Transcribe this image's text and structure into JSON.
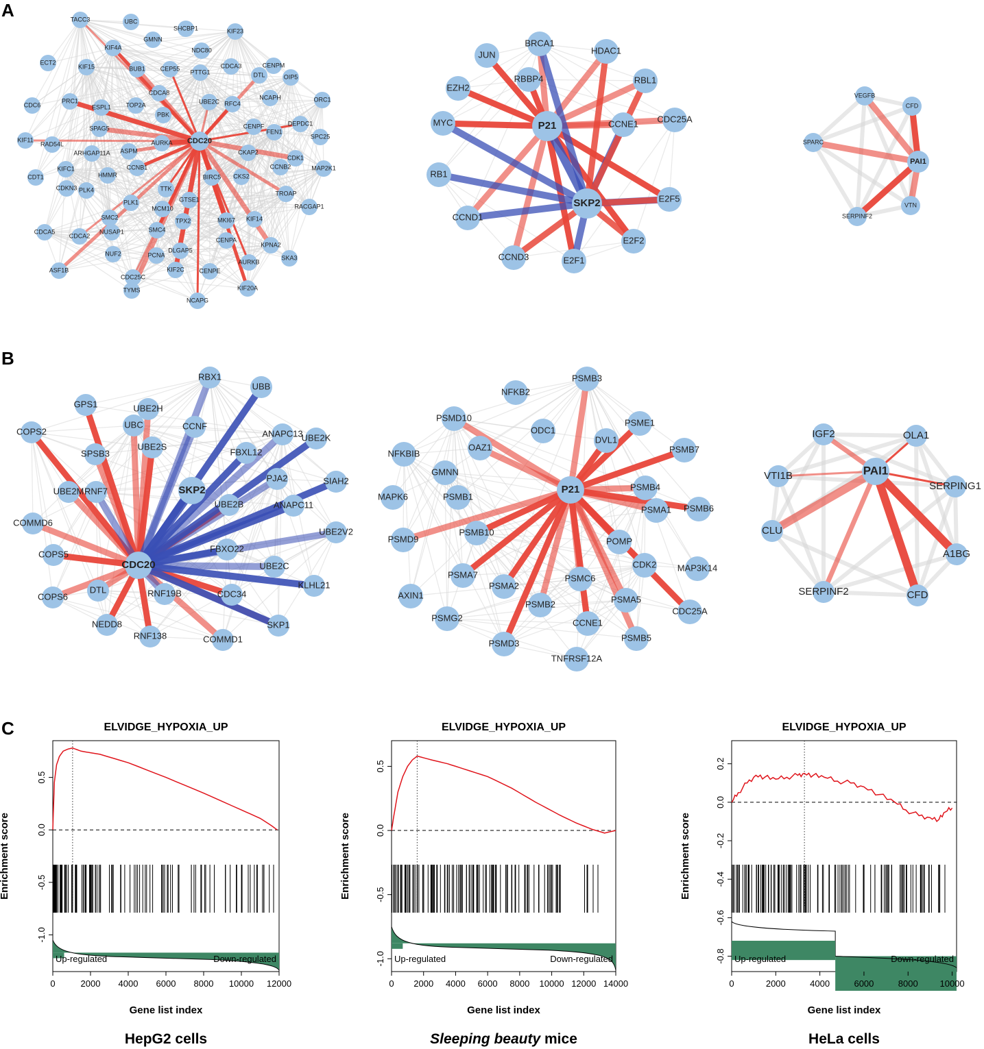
{
  "panel_labels": [
    "A",
    "B",
    "C"
  ],
  "colors": {
    "node": "#9dc3e6",
    "positive_edge": "#e8463a",
    "negative_edge": "#3a4fb5",
    "background_edge": "#d5d5d5",
    "es_curve": "#e0141b",
    "ranked_fill": "#3e8764"
  },
  "networks": {
    "A1": {
      "hub": "CDC20",
      "labels": [
        "TACC3",
        "UBC",
        "SHCBP1",
        "KIF23",
        "NDC80",
        "GMNN",
        "KIF4A",
        "CENPM",
        "ECT2",
        "KIF15",
        "BUB1",
        "CEP55",
        "PTTG1",
        "CDCA3",
        "DTL",
        "OIP5",
        "CDC6",
        "PRC1",
        "ESPL1",
        "TOP2A",
        "CDCA8",
        "UBE2C",
        "RFC4",
        "NCAPH",
        "ORC1",
        "SPAG5",
        "PBK",
        "CENPF",
        "DEPDC1",
        "RAD54L",
        "ARHGAP11A",
        "ASPM",
        "AURKA",
        "FEN1",
        "SPC25",
        "KIF11",
        "KIFC1",
        "CCNB1",
        "HMMR",
        "CKAP2",
        "CCNB2",
        "CDK1",
        "MAP2K1",
        "CDT1",
        "PLK4",
        "TTK",
        "BIRC5",
        "CKS2",
        "TROAP",
        "CDKN3",
        "PLK1",
        "MCM10",
        "GTSE1",
        "SMC2",
        "MKI67",
        "KIF14",
        "RACGAP1",
        "CDCA5",
        "CDCA2",
        "NUSAP1",
        "SMC4",
        "TPX2",
        "CENPA",
        "KPNA2",
        "SKA3",
        "NUF2",
        "DLGAP5",
        "AURKB",
        "ASF1B",
        "PCNA",
        "KIF2C",
        "CENPE",
        "CDC25C",
        "KIF20A",
        "TYMS",
        "NCAPG"
      ]
    },
    "A2": {
      "hubs": [
        "P21",
        "SKP2"
      ],
      "labels": [
        "BRCA1",
        "JUN",
        "HDAC1",
        "RBBP4",
        "RBL1",
        "EZH2",
        "CDC25A",
        "MYC",
        "CCNE1",
        "RB1",
        "E2F5",
        "CCND1",
        "E2F2",
        "CCND3",
        "E2F1"
      ]
    },
    "A3": {
      "hub": "PAI1",
      "labels": [
        "VEGFB",
        "CFD",
        "SPARC",
        "SERPINF2",
        "VTN"
      ]
    },
    "B1": {
      "hubs": [
        "CDC20",
        "SKP2"
      ],
      "labels": [
        "RBX1",
        "UBB",
        "UBE2H",
        "ANAPC13",
        "GPS1",
        "UBE2K",
        "UBC",
        "CCNF",
        "FBXL12",
        "COPS2",
        "SPSB3",
        "UBE2S",
        "PJA2",
        "SIAH2",
        "UBE2M",
        "RNF7",
        "UBE2B",
        "ANAPC11",
        "UBE2V2",
        "COMMD6",
        "COPS5",
        "FBXO22",
        "UBE2C",
        "KLHL21",
        "DTL",
        "RNF19B",
        "CDC34",
        "COPS6",
        "NEDD8",
        "SKP1",
        "RNF138",
        "COMMD1"
      ]
    },
    "B2": {
      "hub": "P21",
      "labels": [
        "PSMB3",
        "NFKB2",
        "PSME1",
        "PSMD10",
        "ODC1",
        "DVL1",
        "NFKBIB",
        "OAZ1",
        "PSMB7",
        "GMNN",
        "MAPK6",
        "PSMB1",
        "PSMB4",
        "PSMB6",
        "PSMD9",
        "PSMB10",
        "PSMA1",
        "POMP",
        "CDK2",
        "MAP3K14",
        "PSMA7",
        "PSMC6",
        "PSMA2",
        "AXIN1",
        "PSMA5",
        "CDC25A",
        "PSMB2",
        "PSMG2",
        "CCNE1",
        "PSMB5",
        "PSMD3",
        "TNFRSF12A"
      ]
    },
    "B3": {
      "hub": "PAI1",
      "labels": [
        "IGF2",
        "OLA1",
        "VTI1B",
        "SERPING1",
        "CLU",
        "A1BG",
        "SERPINF2",
        "CFD"
      ]
    }
  },
  "chart_data": [
    {
      "type": "line",
      "title": "ELVIDGE_HYPOXIA_UP",
      "xlabel": "Gene list index",
      "ylabel": "Enrichment score",
      "xlim": [
        0,
        12000
      ],
      "ylim": [
        -1.35,
        0.85
      ],
      "xticks": [
        0,
        2000,
        4000,
        6000,
        8000,
        10000,
        12000
      ],
      "yticks": [
        -1.0,
        -0.5,
        0.0,
        0.5
      ],
      "ytick_labels": [
        "-1.0",
        "-0.5",
        "0.0",
        "0.5"
      ],
      "series": [
        {
          "name": "Enrichment score",
          "x": [
            0,
            80,
            200,
            350,
            550,
            800,
            1050,
            1500,
            2500,
            4000,
            6000,
            8000,
            10000,
            11000,
            11600,
            11900
          ],
          "y": [
            0.0,
            0.45,
            0.62,
            0.7,
            0.75,
            0.77,
            0.78,
            0.75,
            0.72,
            0.64,
            0.5,
            0.35,
            0.19,
            0.11,
            0.04,
            0.0
          ]
        }
      ],
      "peak_index": 1050,
      "baseline": 0.0,
      "ranked_metric_baseline": -1.17,
      "left_annotation": "Up-regulated",
      "right_annotation": "Down-regulated",
      "sample_label": "HepG2 cells"
    },
    {
      "type": "line",
      "title": "ELVIDGE_HYPOXIA_UP",
      "xlabel": "Gene list index",
      "ylabel": "Enrichment score",
      "xlim": [
        0,
        14000
      ],
      "ylim": [
        -1.1,
        0.7
      ],
      "xticks": [
        0,
        2000,
        4000,
        6000,
        8000,
        10000,
        12000,
        14000
      ],
      "yticks": [
        -1.0,
        -0.5,
        0.0,
        0.5
      ],
      "ytick_labels": [
        "-1.0",
        "-0.5",
        "0.0",
        "0.5"
      ],
      "series": [
        {
          "name": "Enrichment score",
          "x": [
            0,
            150,
            400,
            700,
            1000,
            1300,
            1600,
            2500,
            3500,
            4500,
            6000,
            7500,
            9000,
            10500,
            11500,
            12500,
            13300,
            14000
          ],
          "y": [
            0.0,
            0.12,
            0.3,
            0.42,
            0.5,
            0.55,
            0.58,
            0.55,
            0.52,
            0.48,
            0.42,
            0.33,
            0.22,
            0.12,
            0.06,
            0.01,
            -0.02,
            0.0
          ]
        }
      ],
      "peak_index": 1600,
      "baseline": 0.0,
      "ranked_metric_baseline": -0.88,
      "left_annotation": "Up-regulated",
      "right_annotation": "Down-regulated",
      "sample_label_italic": "Sleeping beauty",
      "sample_label_rest": " mice"
    },
    {
      "type": "line",
      "title": "ELVIDGE_HYPOXIA_UP",
      "xlabel": "Gene list index",
      "ylabel": "Enrichment score",
      "xlim": [
        0,
        10200
      ],
      "ylim": [
        -0.88,
        0.32
      ],
      "xticks": [
        0,
        2000,
        4000,
        6000,
        8000,
        10000
      ],
      "yticks": [
        -0.8,
        -0.6,
        -0.4,
        -0.2,
        0.0,
        0.2
      ],
      "ytick_labels": [
        "-0.8",
        "-0.6",
        "-0.4",
        "-0.2",
        "0.0",
        "0.2"
      ],
      "series": [
        {
          "name": "Enrichment score",
          "x": [
            0,
            300,
            700,
            1100,
            1500,
            2000,
            2500,
            3000,
            3300,
            3700,
            4200,
            4800,
            5400,
            6000,
            6700,
            7400,
            7900,
            8500,
            9000,
            9400,
            9700,
            10000
          ],
          "y": [
            0.0,
            0.05,
            0.1,
            0.14,
            0.13,
            0.12,
            0.13,
            0.14,
            0.15,
            0.14,
            0.13,
            0.11,
            0.1,
            0.08,
            0.04,
            0.0,
            -0.04,
            -0.07,
            -0.08,
            -0.09,
            -0.05,
            -0.03
          ]
        }
      ],
      "peak_index": 3300,
      "baseline": 0.0,
      "ranked_metric_levels": [
        {
          "x_end": 4700,
          "level": -0.72
        },
        {
          "x_end": 10200,
          "level": -0.8
        }
      ],
      "left_annotation": "Up-regulated",
      "right_annotation": "Down-regulated",
      "sample_label": "HeLa cells"
    }
  ]
}
